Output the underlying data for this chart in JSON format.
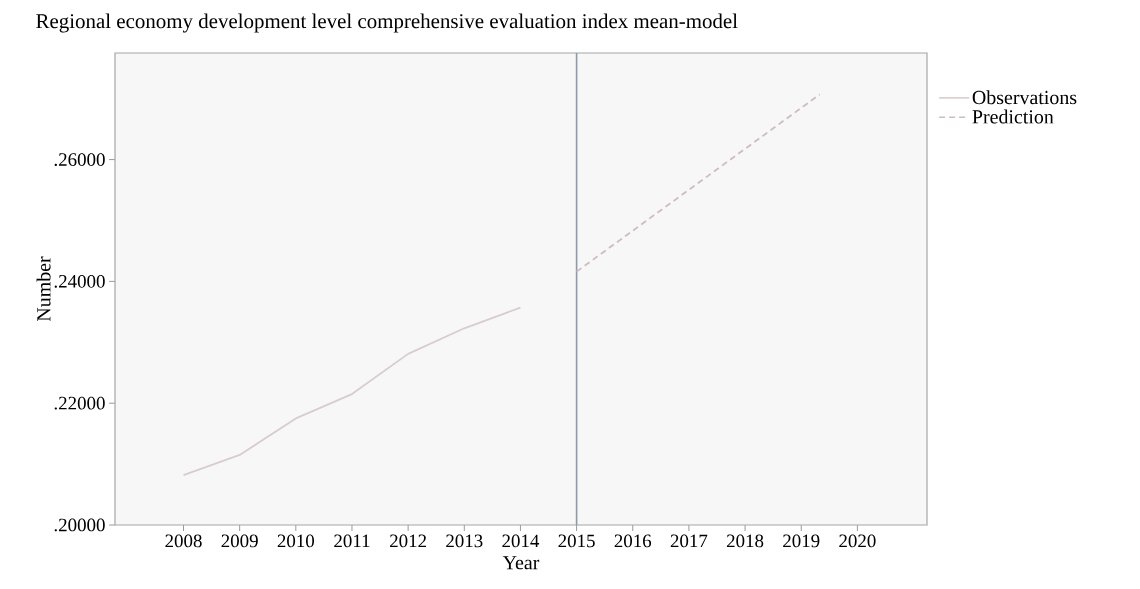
{
  "chart_data": {
    "type": "line",
    "title": "Regional economy development level comprehensive evaluation index mean-model",
    "xlabel": "Year",
    "ylabel": "Number",
    "xlim": [
      2006.78,
      2021.24
    ],
    "ylim": [
      0.2,
      0.2775
    ],
    "xticks": [
      2008,
      2009,
      2010,
      2011,
      2012,
      2013,
      2014,
      2015,
      2016,
      2017,
      2018,
      2019,
      2020
    ],
    "yticks": [
      {
        "value": 0.2,
        "label": ".20000"
      },
      {
        "value": 0.22,
        "label": ".22000"
      },
      {
        "value": 0.24,
        "label": ".24000"
      },
      {
        "value": 0.26,
        "label": ".26000"
      }
    ],
    "legend": "right",
    "marker": "none",
    "grid": false,
    "ref_lines": [
      {
        "axis": "x",
        "value": 2015,
        "color": "#8f99a8"
      }
    ],
    "series": [
      {
        "name": "Observations",
        "color": "#d9cccc",
        "line_style": "solid",
        "x": [
          2008,
          2009,
          2010,
          2011,
          2012,
          2013,
          2014
        ],
        "values": [
          0.2082,
          0.2115,
          0.2175,
          0.2215,
          0.2281,
          0.2323,
          0.2357
        ]
      },
      {
        "name": "Prediction",
        "color": "#cdbdbd",
        "line_style": "dashed",
        "x": [
          2015,
          2019.33
        ],
        "values": [
          0.2416,
          0.2707
        ]
      }
    ]
  }
}
